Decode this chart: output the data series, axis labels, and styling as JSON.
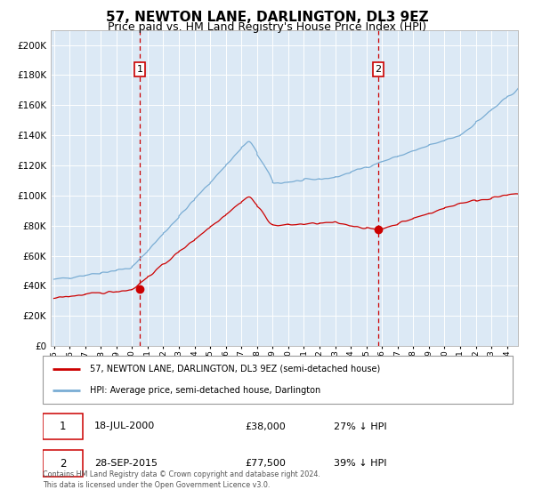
{
  "title": "57, NEWTON LANE, DARLINGTON, DL3 9EZ",
  "subtitle": "Price paid vs. HM Land Registry's House Price Index (HPI)",
  "title_fontsize": 11,
  "subtitle_fontsize": 9,
  "background_color": "#ffffff",
  "plot_bg_color": "#dce9f5",
  "grid_color": "#ffffff",
  "ylim": [
    0,
    210000
  ],
  "ytick_vals": [
    0,
    20000,
    40000,
    60000,
    80000,
    100000,
    120000,
    140000,
    160000,
    180000,
    200000
  ],
  "sale1_date_num": 2000.54,
  "sale1_price": 38000,
  "sale2_date_num": 2015.74,
  "sale2_price": 77500,
  "legend_line1": "57, NEWTON LANE, DARLINGTON, DL3 9EZ (semi-detached house)",
  "legend_line2": "HPI: Average price, semi-detached house, Darlington",
  "line1_color": "#cc0000",
  "line2_color": "#7aadd4",
  "annotation1_date": "18-JUL-2000",
  "annotation1_price": "£38,000",
  "annotation1_hpi": "27% ↓ HPI",
  "annotation2_date": "28-SEP-2015",
  "annotation2_price": "£77,500",
  "annotation2_hpi": "39% ↓ HPI",
  "footer": "Contains HM Land Registry data © Crown copyright and database right 2024.\nThis data is licensed under the Open Government Licence v3.0."
}
